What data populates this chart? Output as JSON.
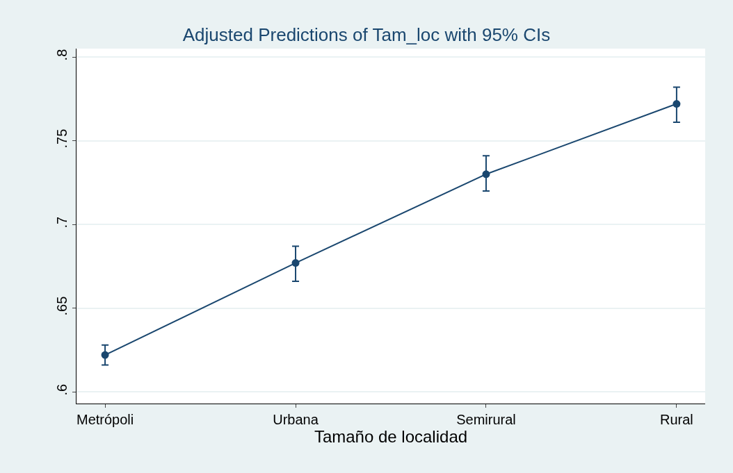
{
  "chart_data": {
    "type": "line",
    "title": "Adjusted Predictions of Tam_loc with 95% CIs",
    "xlabel": "Tamaño de localidad",
    "categories": [
      "Metrópoli",
      "Urbana",
      "Semirural",
      "Rural"
    ],
    "series": [
      {
        "color": "#1a476f",
        "values": [
          0.622,
          0.677,
          0.73,
          0.772
        ],
        "errors": [
          [
            0.616,
            0.628
          ],
          [
            0.666,
            0.687
          ],
          [
            0.72,
            0.741
          ],
          [
            0.761,
            0.782
          ]
        ]
      }
    ],
    "ylim": [
      0.593,
      0.805
    ],
    "yticks": [
      {
        "value": 0.6,
        "label": ".6"
      },
      {
        "value": 0.65,
        "label": ".65"
      },
      {
        "value": 0.7,
        "label": ".7"
      },
      {
        "value": 0.75,
        "label": ".75"
      },
      {
        "value": 0.8,
        "label": ".8"
      }
    ],
    "grid": "y",
    "marker": "circle",
    "line_style": "solid"
  }
}
